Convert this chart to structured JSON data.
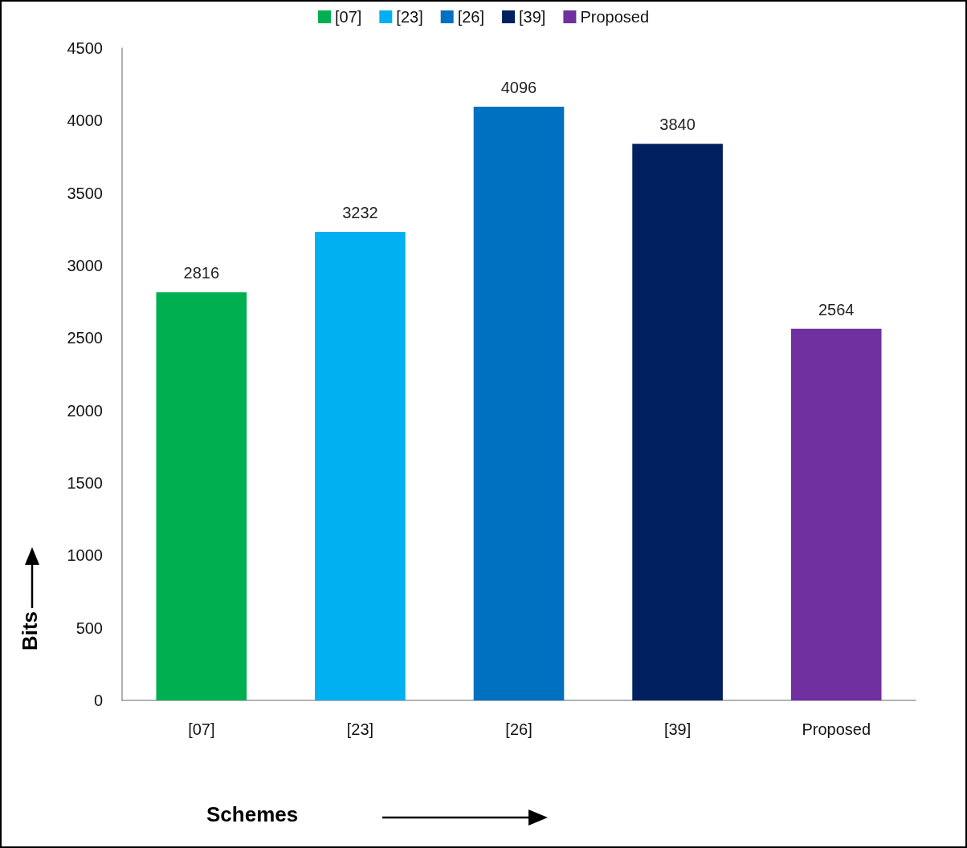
{
  "chart_data": {
    "type": "bar",
    "categories": [
      "[07]",
      "[23]",
      "[26]",
      "[39]",
      "Proposed"
    ],
    "series": [
      {
        "name": "[07]",
        "color": "#00b050",
        "values": [
          2816,
          null,
          null,
          null,
          null
        ]
      },
      {
        "name": "[23]",
        "color": "#00b0f0",
        "values": [
          null,
          3232,
          null,
          null,
          null
        ]
      },
      {
        "name": "[26]",
        "color": "#0070c0",
        "values": [
          null,
          null,
          4096,
          null,
          null
        ]
      },
      {
        "name": "[39]",
        "color": "#002060",
        "values": [
          null,
          null,
          null,
          3840,
          null
        ]
      },
      {
        "name": "Proposed",
        "color": "#7030a0",
        "values": [
          null,
          null,
          null,
          null,
          2564
        ]
      }
    ],
    "xlabel": "Schemes",
    "ylabel": "Bits",
    "ylim": [
      0,
      4500
    ],
    "yticks": [
      0,
      500,
      1000,
      1500,
      2000,
      2500,
      3000,
      3500,
      4000,
      4500
    ],
    "data_labels": true,
    "grid": false,
    "legend": "top"
  }
}
